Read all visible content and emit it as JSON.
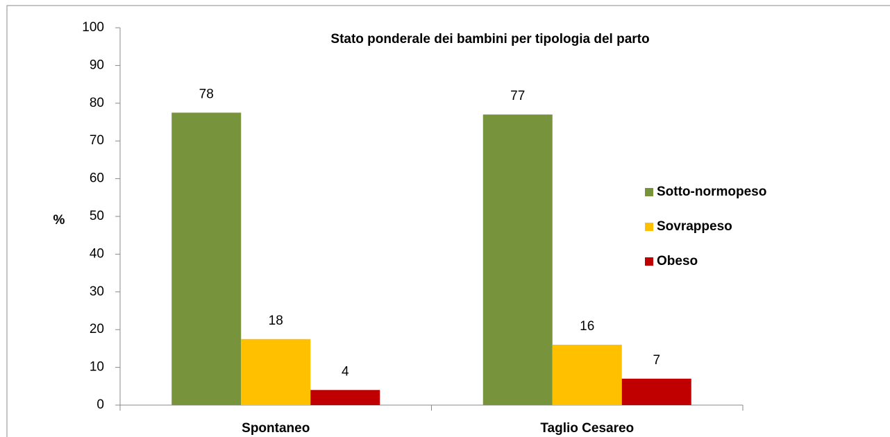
{
  "chart_data": {
    "type": "bar",
    "title": "Stato ponderale dei bambini  per tipologia del parto",
    "y_label": "%",
    "categories": [
      "Spontaneo",
      "Taglio Cesareo"
    ],
    "series": [
      {
        "name": "Sotto-normopeso",
        "color": "#77933c",
        "values": [
          77.5,
          77
        ],
        "value_labels": [
          "78",
          "77"
        ]
      },
      {
        "name": "Sovrappeso",
        "color": "#ffc000",
        "values": [
          17.5,
          16
        ],
        "value_labels": [
          "18",
          "16"
        ]
      },
      {
        "name": "Obeso",
        "color": "#c00000",
        "values": [
          4,
          7
        ],
        "value_labels": [
          "4",
          "7"
        ]
      }
    ],
    "ylim": [
      0,
      100
    ],
    "yticks": [
      0,
      10,
      20,
      30,
      40,
      50,
      60,
      70,
      80,
      90,
      100
    ],
    "grid": false,
    "legend": "right"
  }
}
